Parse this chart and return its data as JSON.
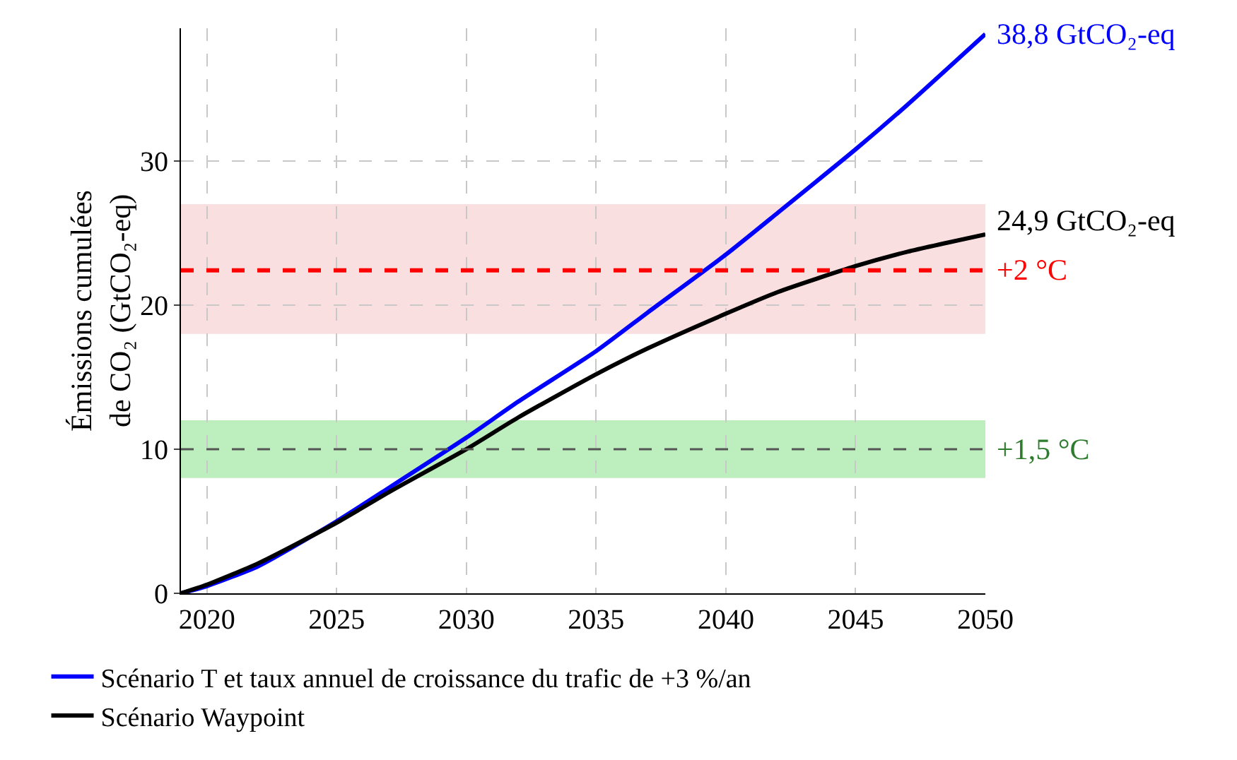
{
  "chart_data": {
    "type": "line",
    "ylabel": "Émissions cumulées\nde CO₂ (GtCO₂-eq)",
    "x": [
      2019,
      2020,
      2022,
      2025,
      2027,
      2030,
      2032,
      2035,
      2037,
      2040,
      2042,
      2045,
      2047,
      2050
    ],
    "series": [
      {
        "name": "Scénario T et taux annuel de croissance du trafic de +3 %/an",
        "color": "#0000ff",
        "values": [
          0,
          0.5,
          1.9,
          5.0,
          7.3,
          10.8,
          13.3,
          16.8,
          19.5,
          23.5,
          26.4,
          30.8,
          33.9,
          38.8
        ]
      },
      {
        "name": "Scénario Waypoint",
        "color": "#000000",
        "values": [
          0,
          0.6,
          2.1,
          4.9,
          7.0,
          10.0,
          12.2,
          15.2,
          17.0,
          19.4,
          20.9,
          22.7,
          23.7,
          24.9
        ]
      }
    ],
    "xlim": [
      2019,
      2050
    ],
    "ylim": [
      0,
      39.2
    ],
    "xticks": [
      2020,
      2025,
      2030,
      2035,
      2040,
      2045,
      2050
    ],
    "yticks": [
      0,
      10,
      20,
      30
    ],
    "bands": [
      {
        "axis": "y",
        "from": 18,
        "to": 27,
        "color": "#fadfe1"
      },
      {
        "axis": "y",
        "from": 8,
        "to": 12,
        "color": "#bdeebd",
        "label": "+1,5 °C"
      }
    ],
    "ref_lines": [
      {
        "axis": "y",
        "value": 22.4,
        "label": "+2 °C",
        "color": "#ff0000",
        "line_style": "dashed"
      },
      {
        "axis": "y",
        "value": 10,
        "color": "#555555",
        "line_style": "dashed"
      }
    ],
    "annotations": [
      {
        "text": "38,8 GtCO₂-eq",
        "x": 2050,
        "y": 38.8
      },
      {
        "text": "24,9 GtCO₂-eq",
        "x": 2050,
        "y": 24.9
      }
    ],
    "grid": true,
    "legend": "bottom",
    "marker": "none",
    "line_style": "solid"
  }
}
